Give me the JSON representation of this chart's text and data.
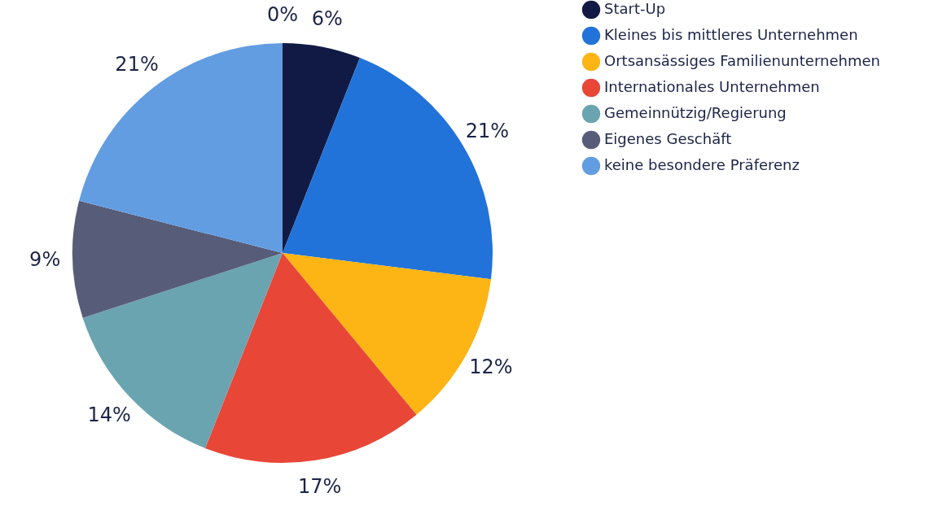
{
  "chart_data": {
    "type": "pie",
    "categories": [
      "Start-Up",
      "Kleines bis mittleres Unternehmen",
      "Ortsansässiges Familienunternehmen",
      "Internationales Unternehmen",
      "Gemeinnützig/Regierung",
      "Eigenes Geschäft",
      "keine besondere Präferenz",
      null
    ],
    "values": [
      6,
      21,
      12,
      17,
      14,
      9,
      21,
      0
    ],
    "colors": [
      "#111a44",
      "#2173d9",
      "#fdb515",
      "#e84637",
      "#6aa4b0",
      "#575c78",
      "#629de2",
      "#111a44"
    ],
    "value_labels": [
      "6%",
      "21%",
      "12%",
      "17%",
      "14%",
      "9%",
      "21%",
      "0%"
    ],
    "legend": "right"
  }
}
